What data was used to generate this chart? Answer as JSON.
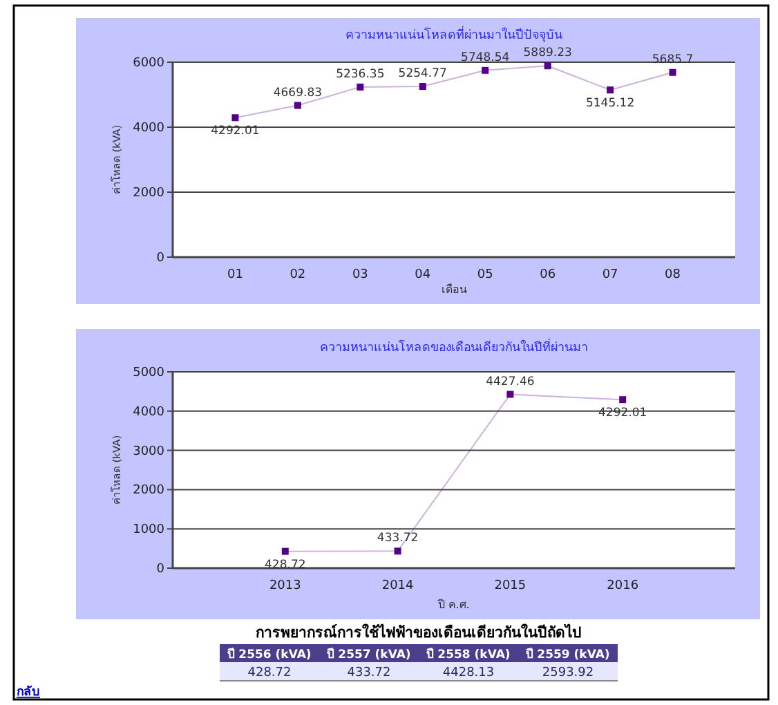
{
  "chart_data": [
    {
      "type": "line",
      "title": "ความหนาแน่นโหลดที่ผ่านมาในปีปัจจุบัน",
      "xlabel": "เดือน",
      "ylabel": "ค่าโหลด (kVA)",
      "categories": [
        "01",
        "02",
        "03",
        "04",
        "05",
        "06",
        "07",
        "08"
      ],
      "series": [
        {
          "color": "#550088",
          "values": [
            4292.01,
            4669.83,
            5236.35,
            5254.77,
            5748.54,
            5889.23,
            5145.12,
            5685.7
          ]
        }
      ],
      "ylim": [
        0,
        6000
      ],
      "yticks": [
        0,
        2000,
        4000,
        6000
      ],
      "grid": "y",
      "marker": "square",
      "data_labels": true
    },
    {
      "type": "line",
      "title": "ความหนาแน่นโหลดของเดือนเดียวกันในปีที่ผ่านมา",
      "xlabel": "ปี ค.ศ.",
      "ylabel": "ค่าโหลด (kVA)",
      "categories": [
        "2013",
        "2014",
        "2015",
        "2016"
      ],
      "series": [
        {
          "color": "#550088",
          "values": [
            428.72,
            433.72,
            4427.46,
            4292.01
          ]
        }
      ],
      "ylim": [
        0,
        5000
      ],
      "yticks": [
        0,
        1000,
        2000,
        3000,
        4000,
        5000
      ],
      "grid": "y",
      "marker": "square",
      "data_labels": true
    },
    {
      "type": "other",
      "title": "การพยากรณ์การใช้ไฟฟ้าของเดือนเดียวกันในปีถัดไป",
      "categories": [
        "ปี 2556 (kVA)",
        "ปี 2557 (kVA)",
        "ปี 2558 (kVA)",
        "ปี 2559 (kVA)"
      ],
      "values": [
        428.72,
        433.72,
        4428.13,
        2593.92
      ],
      "data_labels": true,
      "annotations": [
        "กลับ"
      ]
    }
  ]
}
